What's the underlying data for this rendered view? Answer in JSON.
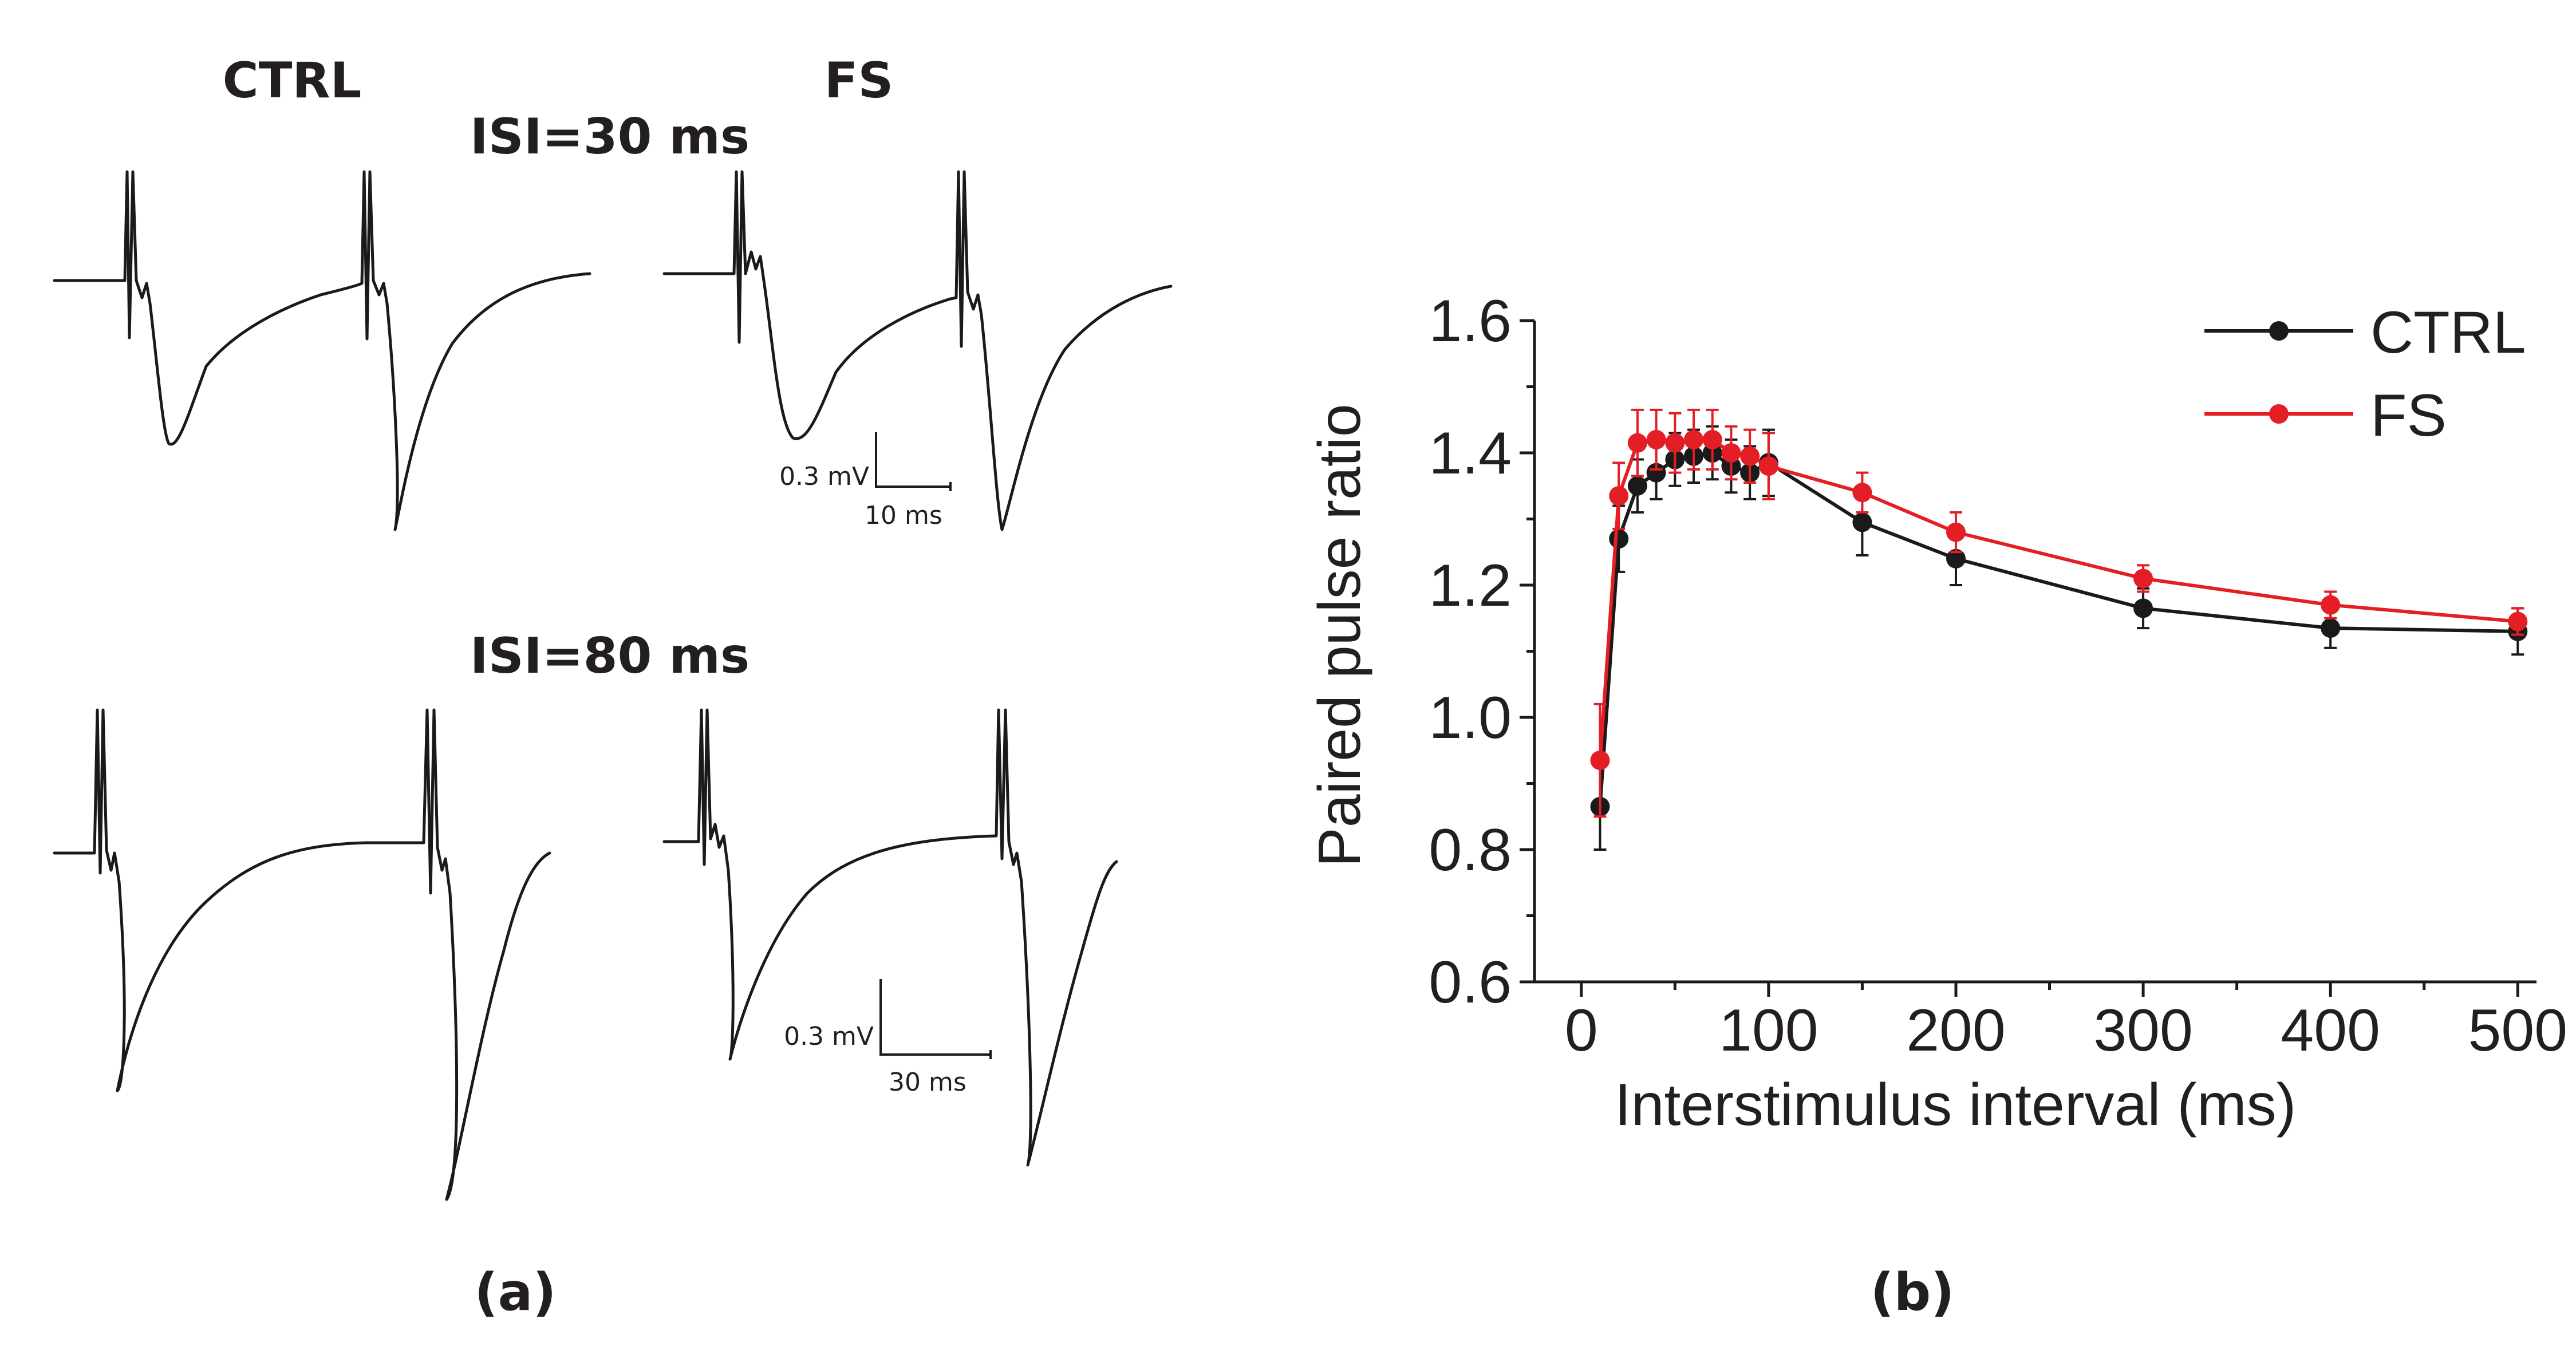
{
  "panel_a": {
    "label": "(a)",
    "col_ctrl": "CTRL",
    "col_fs": "FS",
    "top_title": "ISI=30 ms",
    "bottom_title": "ISI=80 ms",
    "top_scale_v": "0.3 mV",
    "top_scale_t": "10 ms",
    "bottom_scale_v": "0.3 mV",
    "bottom_scale_t": "30 ms"
  },
  "panel_b": {
    "label": "(b)"
  },
  "colors": {
    "ctrl": "#1a1a1a",
    "fs": "#e31e24"
  },
  "chart_data": {
    "type": "line",
    "xlabel": "Interstimulus interval (ms)",
    "ylabel": "Paired pulse ratio",
    "xlim": [
      -25,
      510
    ],
    "ylim": [
      0.6,
      1.6
    ],
    "xticks": [
      0,
      100,
      200,
      300,
      400,
      500
    ],
    "yticks": [
      0.6,
      0.8,
      1.0,
      1.2,
      1.4,
      1.6
    ],
    "x": [
      10,
      20,
      30,
      40,
      50,
      60,
      70,
      80,
      90,
      100,
      150,
      200,
      300,
      400,
      500
    ],
    "legend_position": "top-right",
    "series": [
      {
        "name": "CTRL",
        "values": [
          0.865,
          1.27,
          1.35,
          1.37,
          1.39,
          1.395,
          1.4,
          1.38,
          1.37,
          1.385,
          1.295,
          1.24,
          1.165,
          1.135,
          1.13
        ],
        "errors": [
          0.065,
          0.05,
          0.04,
          0.04,
          0.04,
          0.04,
          0.04,
          0.04,
          0.04,
          0.05,
          0.05,
          0.04,
          0.03,
          0.03,
          0.035
        ]
      },
      {
        "name": "FS",
        "values": [
          0.935,
          1.335,
          1.415,
          1.42,
          1.415,
          1.42,
          1.42,
          1.4,
          1.395,
          1.38,
          1.34,
          1.28,
          1.21,
          1.17,
          1.145
        ],
        "errors": [
          0.085,
          0.05,
          0.05,
          0.045,
          0.045,
          0.045,
          0.045,
          0.04,
          0.04,
          0.05,
          0.03,
          0.03,
          0.02,
          0.02,
          0.02
        ]
      }
    ]
  }
}
